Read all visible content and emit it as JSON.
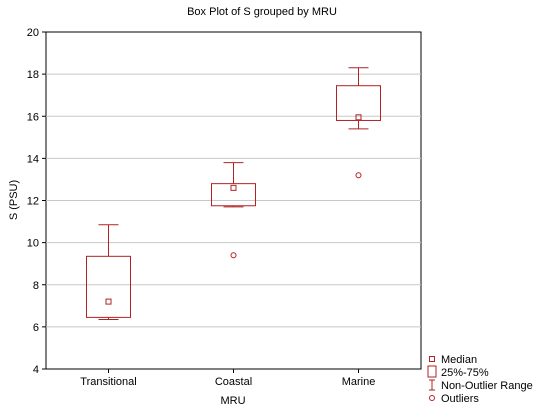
{
  "chart_data": {
    "type": "box",
    "title": "Box Plot of S grouped by  MRU",
    "xlabel": "MRU",
    "ylabel": "S (PSU)",
    "ylim": [
      4,
      20
    ],
    "yticks": [
      4,
      6,
      8,
      10,
      12,
      14,
      16,
      18,
      20
    ],
    "grid": true,
    "legend_position": "bottom-right",
    "color": "#b22222",
    "categories": [
      "Transitional",
      "Coastal",
      "Marine"
    ],
    "boxes": [
      {
        "category": "Transitional",
        "median": 7.2,
        "q1": 6.45,
        "q3": 9.35,
        "whisker_low": 6.35,
        "whisker_high": 10.85,
        "outliers": []
      },
      {
        "category": "Coastal",
        "median": 12.6,
        "q1": 11.75,
        "q3": 12.8,
        "whisker_low": 11.7,
        "whisker_high": 13.8,
        "outliers": [
          9.4
        ]
      },
      {
        "category": "Marine",
        "median": 15.95,
        "q1": 15.8,
        "q3": 17.45,
        "whisker_low": 15.4,
        "whisker_high": 18.3,
        "outliers": [
          13.2
        ]
      }
    ],
    "legend": [
      {
        "marker": "median",
        "label": "Median"
      },
      {
        "marker": "box",
        "label": "25%-75%"
      },
      {
        "marker": "whisker",
        "label": "Non-Outlier Range"
      },
      {
        "marker": "outlier",
        "label": "Outliers"
      }
    ]
  }
}
